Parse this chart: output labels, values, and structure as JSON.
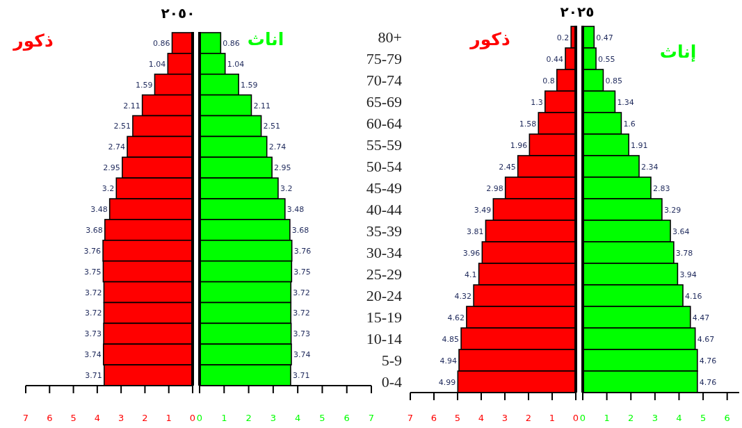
{
  "chart_data": [
    {
      "type": "bar",
      "orientation": "horizontal",
      "title": "٢٠٥٠",
      "categories": [
        null,
        null,
        null,
        null,
        null,
        null,
        null,
        null,
        null,
        null,
        null,
        null,
        null,
        null,
        null,
        null,
        null
      ],
      "series": [
        {
          "name": "ذكور",
          "color": "#ff0000",
          "values": [
            0.86,
            1.04,
            1.59,
            2.11,
            2.51,
            2.74,
            2.95,
            3.2,
            3.48,
            3.68,
            3.76,
            3.75,
            3.72,
            3.72,
            3.73,
            3.74,
            3.71
          ]
        }
      ],
      "xlim": [
        7,
        0
      ],
      "xticks": [
        7,
        6,
        5,
        4,
        3,
        2,
        1,
        0
      ],
      "data_labels": true
    },
    {
      "type": "bar",
      "orientation": "horizontal",
      "categories": [
        null,
        null,
        null,
        null,
        null,
        null,
        null,
        null,
        null,
        null,
        null,
        null,
        null,
        null,
        null,
        null,
        null
      ],
      "series": [
        {
          "name": "اناث",
          "color": "#00ff00",
          "values": [
            0.86,
            1.04,
            1.59,
            2.11,
            2.51,
            2.74,
            2.95,
            3.2,
            3.48,
            3.68,
            3.76,
            3.75,
            3.72,
            3.72,
            3.73,
            3.74,
            3.71
          ]
        }
      ],
      "xlim": [
        0,
        7
      ],
      "xticks": [
        0,
        1,
        2,
        3,
        4,
        5,
        6,
        7
      ],
      "data_labels": true
    },
    {
      "type": "bar",
      "orientation": "horizontal",
      "title": "٢٠٢٥",
      "categories": [
        "80+",
        "75-79",
        "70-74",
        "65-69",
        "60-64",
        "55-59",
        "50-54",
        "45-49",
        "40-44",
        "35-39",
        "30-34",
        "25-29",
        "20-24",
        "15-19",
        "10-14",
        "5-9",
        "0-4"
      ],
      "series": [
        {
          "name": "ذكور",
          "color": "#ff0000",
          "values": [
            0.2,
            0.44,
            0.8,
            1.3,
            1.58,
            1.96,
            2.45,
            2.98,
            3.49,
            3.81,
            3.96,
            4.1,
            4.32,
            4.62,
            4.85,
            4.94,
            4.99
          ]
        }
      ],
      "xlim": [
        7,
        0
      ],
      "xticks": [
        7,
        6,
        5,
        4,
        3,
        2,
        1,
        0
      ],
      "data_labels": true
    },
    {
      "type": "bar",
      "orientation": "horizontal",
      "categories": [
        null,
        null,
        null,
        null,
        null,
        null,
        null,
        null,
        null,
        null,
        null,
        null,
        null,
        null,
        null,
        null,
        null
      ],
      "series": [
        {
          "name": "إناث",
          "color": "#00ff00",
          "values": [
            0.47,
            0.55,
            0.85,
            1.34,
            1.6,
            1.91,
            2.34,
            2.83,
            3.29,
            3.64,
            3.78,
            3.94,
            4.16,
            4.47,
            4.67,
            4.76,
            4.76
          ]
        }
      ],
      "xlim": [
        0,
        6.5
      ],
      "xticks": [
        0,
        1,
        2,
        3,
        4,
        5,
        6
      ],
      "data_labels": true
    }
  ]
}
